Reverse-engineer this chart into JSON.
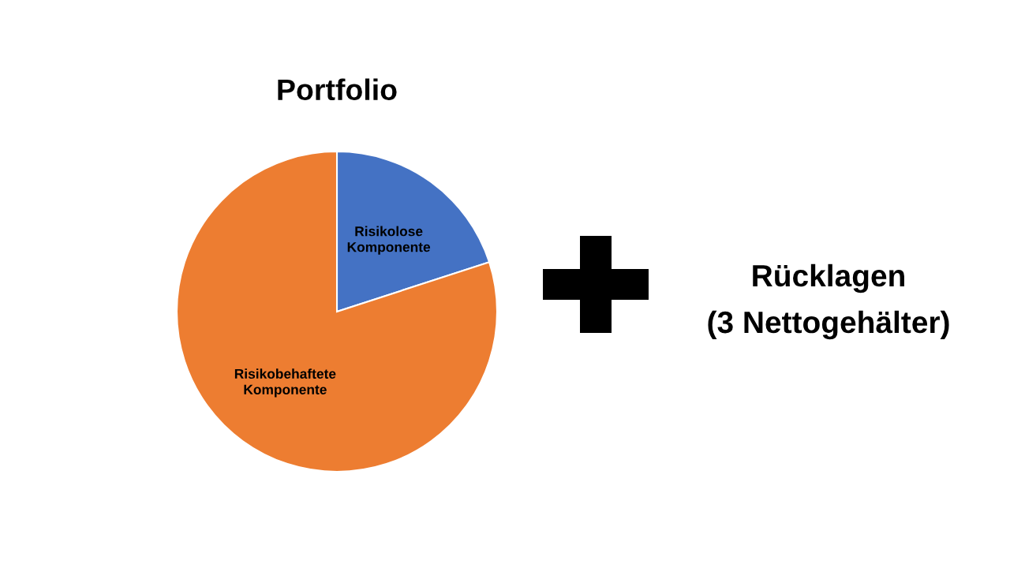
{
  "chart_data": {
    "type": "pie",
    "title": "Portfolio",
    "categories": [
      "Risikolose Komponente",
      "Risikobehaftete Komponente"
    ],
    "values": [
      20,
      80
    ],
    "colors": [
      "#4472c4",
      "#ed7d31"
    ],
    "annotations": [
      "Rücklagen",
      "(3 Nettogehälter)"
    ]
  }
}
